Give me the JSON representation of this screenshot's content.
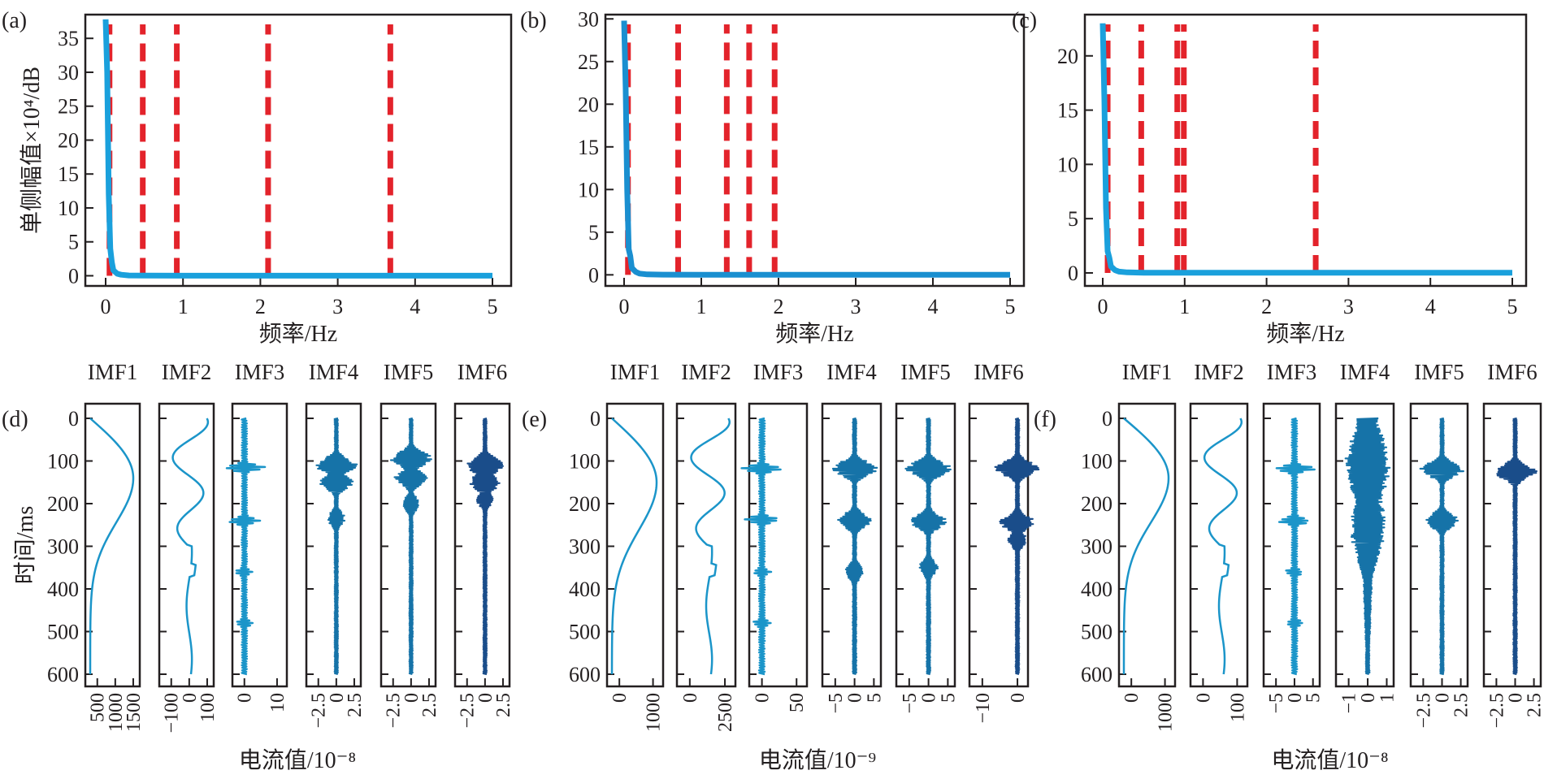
{
  "chart_data": [
    {
      "id": "a",
      "type": "line",
      "panel_label": "(a)",
      "xlabel": "频率/Hz",
      "ylabel": "单侧幅值×10⁴/dB",
      "xlim": [
        0,
        5
      ],
      "ylim": [
        -1.5,
        38.5
      ],
      "xticks": [
        0,
        1,
        2,
        3,
        4,
        5
      ],
      "yticks": [
        0,
        5,
        10,
        15,
        20,
        25,
        30,
        35
      ],
      "grid": false,
      "series": [
        {
          "name": "spectrum",
          "color": "#1aa0dc",
          "x": [
            0,
            0.02,
            0.04,
            0.06,
            0.08,
            0.1,
            0.15,
            0.2,
            0.3,
            0.5,
            1,
            2,
            3,
            4,
            5
          ],
          "y": [
            37.8,
            30,
            12,
            4,
            2,
            0.8,
            0.3,
            0.15,
            0.05,
            0.02,
            0.01,
            0.01,
            0.01,
            0.01,
            0.01
          ]
        }
      ],
      "vlines": {
        "color": "#e3232b",
        "style": "dashed",
        "x": [
          0.05,
          0.48,
          0.92,
          2.1,
          3.68
        ]
      }
    },
    {
      "id": "b",
      "type": "line",
      "panel_label": "(b)",
      "xlabel": "频率/Hz",
      "ylabel": "",
      "xlim": [
        -0.25,
        5.1
      ],
      "ylim": [
        -1.3,
        30.5
      ],
      "xticks": [
        0,
        1,
        2,
        3,
        4,
        5
      ],
      "yticks": [
        0,
        5,
        10,
        15,
        20,
        25,
        30
      ],
      "grid": false,
      "series": [
        {
          "name": "spectrum",
          "color": "#1a8fd0",
          "x": [
            0,
            0.02,
            0.04,
            0.06,
            0.08,
            0.1,
            0.15,
            0.2,
            0.3,
            0.5,
            1,
            2,
            3,
            4,
            5
          ],
          "y": [
            29.8,
            22,
            10,
            3,
            2.2,
            0.8,
            0.35,
            0.15,
            0.05,
            0.02,
            0.01,
            0.01,
            0.01,
            0.01,
            0.01
          ]
        }
      ],
      "vlines": {
        "color": "#e3232b",
        "style": "dashed",
        "x": [
          0.05,
          0.7,
          1.33,
          1.62,
          1.95
        ]
      }
    },
    {
      "id": "c",
      "type": "line",
      "panel_label": "(c)",
      "xlabel": "频率/Hz",
      "ylabel": "",
      "xlim": [
        -0.25,
        5.25
      ],
      "ylim": [
        -1.2,
        23.8
      ],
      "xticks": [
        0,
        1,
        2,
        3,
        4,
        5
      ],
      "yticks": [
        0,
        5,
        10,
        15,
        20
      ],
      "grid": false,
      "series": [
        {
          "name": "spectrum",
          "color": "#1aa0dc",
          "x": [
            0,
            0.02,
            0.04,
            0.06,
            0.08,
            0.1,
            0.15,
            0.2,
            0.3,
            0.5,
            1,
            2,
            3,
            4,
            5
          ],
          "y": [
            23,
            16,
            6,
            2,
            1.4,
            0.6,
            0.25,
            0.12,
            0.05,
            0.02,
            0.01,
            0.01,
            0.01,
            0.01,
            0.01
          ]
        }
      ],
      "vlines": {
        "color": "#e3232b",
        "style": "dashed",
        "x": [
          0.06,
          0.47,
          0.91,
          0.99,
          2.6
        ]
      }
    },
    {
      "id": "d",
      "type": "line",
      "panel_label": "(d)",
      "ylabel": "时间/ms",
      "xlabel": "电流值/10⁻⁸",
      "yticks": [
        0,
        100,
        200,
        300,
        400,
        500,
        600
      ],
      "ylim": [
        630,
        -30
      ],
      "orientation": "vertical-time",
      "imfs": [
        {
          "name": "IMF1",
          "xticks": [
            "500",
            "1000",
            "1500"
          ],
          "kind": "smooth",
          "shape": "bell",
          "peak_ms": 140
        },
        {
          "name": "IMF2",
          "xticks": [
            "−100",
            "0",
            "100"
          ],
          "kind": "smooth",
          "shape": "oscillating"
        },
        {
          "name": "IMF3",
          "xticks": [
            "0",
            "10"
          ],
          "kind": "osc",
          "bursts_ms": [
            115,
            240,
            360,
            480
          ]
        },
        {
          "name": "IMF4",
          "xticks": [
            "−2.5",
            "0",
            "2.5"
          ],
          "kind": "dense",
          "bursts_ms": [
            110,
            150,
            235
          ]
        },
        {
          "name": "IMF5",
          "xticks": [
            "−2.5",
            "0",
            "2.5"
          ],
          "kind": "dense",
          "bursts_ms": [
            95,
            140,
            200
          ]
        },
        {
          "name": "IMF6",
          "xticks": [
            "−2.5",
            "0",
            "2.5"
          ],
          "kind": "dense",
          "bursts_ms": [
            110,
            150,
            190
          ]
        }
      ]
    },
    {
      "id": "e",
      "type": "line",
      "panel_label": "(e)",
      "ylabel": "",
      "xlabel": "电流值/10⁻⁹",
      "yticks": [
        0,
        100,
        200,
        300,
        400,
        500,
        600
      ],
      "ylim": [
        630,
        -30
      ],
      "orientation": "vertical-time",
      "imfs": [
        {
          "name": "IMF1",
          "xticks": [
            "0",
            "1000"
          ],
          "kind": "smooth",
          "shape": "bell",
          "peak_ms": 150
        },
        {
          "name": "IMF2",
          "xticks": [
            "0",
            "2500"
          ],
          "kind": "smooth",
          "shape": "oscillating"
        },
        {
          "name": "IMF3",
          "xticks": [
            "0",
            "50"
          ],
          "kind": "osc",
          "bursts_ms": [
            118,
            238,
            360,
            480
          ]
        },
        {
          "name": "IMF4",
          "xticks": [
            "−5",
            "0",
            "5"
          ],
          "kind": "dense",
          "bursts_ms": [
            118,
            240,
            360
          ]
        },
        {
          "name": "IMF5",
          "xticks": [
            "−5",
            "0",
            "5"
          ],
          "kind": "dense",
          "bursts_ms": [
            118,
            242,
            350
          ]
        },
        {
          "name": "IMF6",
          "xticks": [
            "−10",
            "0"
          ],
          "kind": "dense",
          "bursts_ms": [
            118,
            245,
            285
          ]
        }
      ]
    },
    {
      "id": "f",
      "type": "line",
      "panel_label": "(f)",
      "ylabel": "",
      "xlabel": "电流值/10⁻⁸",
      "yticks": [
        0,
        100,
        200,
        300,
        400,
        500,
        600
      ],
      "ylim": [
        630,
        -30
      ],
      "orientation": "vertical-time",
      "imfs": [
        {
          "name": "IMF1",
          "xticks": [
            "0",
            "1000"
          ],
          "kind": "smooth",
          "shape": "bell",
          "peak_ms": 140
        },
        {
          "name": "IMF2",
          "xticks": [
            "0",
            "100"
          ],
          "kind": "smooth",
          "shape": "oscillating"
        },
        {
          "name": "IMF3",
          "xticks": [
            "−5",
            "0",
            "5"
          ],
          "kind": "osc",
          "bursts_ms": [
            118,
            240,
            360,
            480
          ]
        },
        {
          "name": "IMF4",
          "xticks": [
            "−1",
            "0",
            "1"
          ],
          "kind": "envelope",
          "bursts_ms": [
            110,
            250
          ]
        },
        {
          "name": "IMF5",
          "xticks": [
            "−2.5",
            "0",
            "2.5"
          ],
          "kind": "dense",
          "bursts_ms": [
            120,
            240
          ]
        },
        {
          "name": "IMF6",
          "xticks": [
            "−2.5",
            "0",
            "2.5"
          ],
          "kind": "dense",
          "bursts_ms": [
            125
          ]
        }
      ]
    }
  ]
}
